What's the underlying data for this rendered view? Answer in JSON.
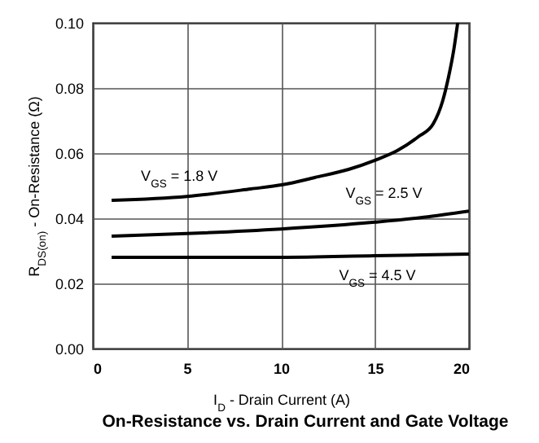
{
  "chart_data": {
    "type": "line",
    "title": "On-Resistance vs. Drain Current and Gate Voltage",
    "xlabel": "I$_{D}$ - Drain Current (A)",
    "ylabel": "R$_{DS(on)}$ - On-Resistance (Ω)",
    "xlim": [
      0,
      20
    ],
    "xticks": [
      0,
      5,
      10,
      15,
      20
    ],
    "ylim": [
      0,
      0.1
    ],
    "yticks": [
      {
        "value": 0,
        "label": "0.00"
      },
      {
        "value": 0.02,
        "label": "0.02"
      },
      {
        "value": 0.04,
        "label": "0.04"
      },
      {
        "value": 0.06,
        "label": "0.06"
      },
      {
        "value": 0.08,
        "label": "0.08"
      },
      {
        "value": 0.1,
        "label": "0.10"
      }
    ],
    "grid": true,
    "series": [
      {
        "name": "V$_{GS}$ = 1.8 V",
        "color": "#000000",
        "x": [
          1,
          5,
          8.4,
          10.1,
          11.8,
          13.6,
          15,
          16.2,
          17.3,
          18.1,
          18.6,
          18.9,
          19.2,
          19.4
        ],
        "values": [
          0.0455,
          0.0467,
          0.049,
          0.0503,
          0.0525,
          0.055,
          0.0578,
          0.0608,
          0.065,
          0.069,
          0.076,
          0.083,
          0.092,
          0.1
        ]
      },
      {
        "name": "V$_{GS}$ = 2.5 V",
        "color": "#000000",
        "x": [
          1,
          5,
          10,
          15,
          17.6,
          20
        ],
        "values": [
          0.0345,
          0.0353,
          0.0367,
          0.0388,
          0.0403,
          0.0422
        ]
      },
      {
        "name": "V$_{GS}$ = 4.5 V",
        "color": "#000000",
        "x": [
          1,
          10,
          15,
          20
        ],
        "values": [
          0.028,
          0.028,
          0.0285,
          0.029
        ]
      }
    ]
  }
}
